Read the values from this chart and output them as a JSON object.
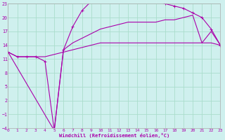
{
  "xlabel": "Windchill (Refroidissement éolien,°C)",
  "bg_color": "#cff0ee",
  "grid_color": "#aaddcc",
  "line_color": "#aa00aa",
  "x_min": 0,
  "x_max": 23,
  "y_min": -4,
  "y_max": 23,
  "yticks": [
    -4,
    -1,
    2,
    5,
    8,
    11,
    14,
    17,
    20,
    23
  ],
  "xticks": [
    0,
    1,
    2,
    3,
    4,
    5,
    6,
    7,
    8,
    9,
    10,
    11,
    12,
    13,
    14,
    15,
    16,
    17,
    18,
    19,
    20,
    21,
    22,
    23
  ],
  "curve1_x": [
    0,
    1,
    2,
    3,
    4,
    5,
    6,
    7,
    8,
    9,
    10,
    11,
    12,
    13,
    14,
    15,
    16,
    17,
    18,
    19,
    20,
    21,
    22,
    23
  ],
  "curve1_y": [
    12.5,
    11.5,
    11.5,
    11.5,
    10.5,
    -4.5,
    13.0,
    18.0,
    21.5,
    23.5,
    24.0,
    23.5,
    23.5,
    23.5,
    23.5,
    23.5,
    23.5,
    23.0,
    22.5,
    22.0,
    21.0,
    20.0,
    17.5,
    14.0
  ],
  "curve2_x": [
    0,
    5,
    6,
    7,
    8,
    9,
    10,
    11,
    12,
    13,
    14,
    15,
    16,
    17,
    18,
    19,
    20,
    21,
    22,
    23
  ],
  "curve2_y": [
    12.5,
    -4.5,
    13.0,
    14.5,
    15.5,
    16.5,
    17.5,
    18.0,
    18.5,
    19.0,
    19.0,
    19.0,
    19.0,
    19.5,
    19.5,
    20.0,
    20.5,
    14.5,
    17.0,
    14.0
  ],
  "curve3_x": [
    0,
    1,
    2,
    3,
    4,
    5,
    6,
    7,
    8,
    9,
    10,
    11,
    12,
    13,
    14,
    15,
    16,
    17,
    18,
    19,
    20,
    21,
    22,
    23
  ],
  "curve3_y": [
    12.5,
    11.5,
    11.5,
    11.5,
    11.5,
    12.0,
    12.5,
    13.0,
    13.5,
    14.0,
    14.5,
    14.5,
    14.5,
    14.5,
    14.5,
    14.5,
    14.5,
    14.5,
    14.5,
    14.5,
    14.5,
    14.5,
    14.5,
    14.0
  ]
}
